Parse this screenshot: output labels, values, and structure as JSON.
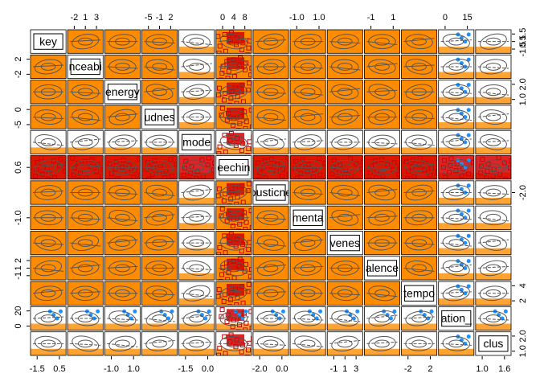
{
  "chart_data": {
    "type": "scatter-matrix",
    "labels": [
      "key",
      "nceabi",
      "energy",
      "udnes",
      "mode",
      "eechin",
      "ousticne",
      "menta",
      "venes",
      "alence",
      "tempo",
      "ation_",
      "clus"
    ],
    "top_ticks": [
      [],
      [
        "-2",
        "1",
        "3"
      ],
      [],
      [
        "-5",
        "-1",
        "2"
      ],
      [],
      [
        "0",
        "4",
        "8"
      ],
      [],
      [
        "-1.0",
        "1.0"
      ],
      [],
      [
        "-1",
        "1"
      ],
      [],
      [
        "0",
        "15"
      ],
      []
    ],
    "bottom_ticks": [
      [
        "-1.5",
        "0.5"
      ],
      [],
      [
        "-1.0",
        "1.0"
      ],
      [],
      [
        "-1.5",
        "0.0"
      ],
      [],
      [
        "-2.0",
        "0.0"
      ],
      [],
      [
        "-1",
        "1",
        "3"
      ],
      [],
      [
        "-2",
        "2"
      ],
      [],
      [
        "1.0",
        "1.6"
      ]
    ],
    "left_ticks": [
      [],
      [
        "-2",
        "2"
      ],
      [],
      [
        "-5",
        "0"
      ],
      [],
      [
        "0.6"
      ],
      [],
      [
        "-1.0"
      ],
      [],
      [
        "-1",
        "1",
        "2"
      ],
      [],
      [
        "0",
        "20"
      ],
      []
    ],
    "right_ticks": [
      [
        "-1.5",
        "0.5",
        "1.5"
      ],
      [],
      [
        "1.0",
        "2.0"
      ],
      [],
      [],
      [],
      [
        "-2.0"
      ],
      [],
      [],
      [],
      [
        "2",
        "4"
      ],
      [],
      [
        "1.0",
        "2.0"
      ]
    ]
  }
}
